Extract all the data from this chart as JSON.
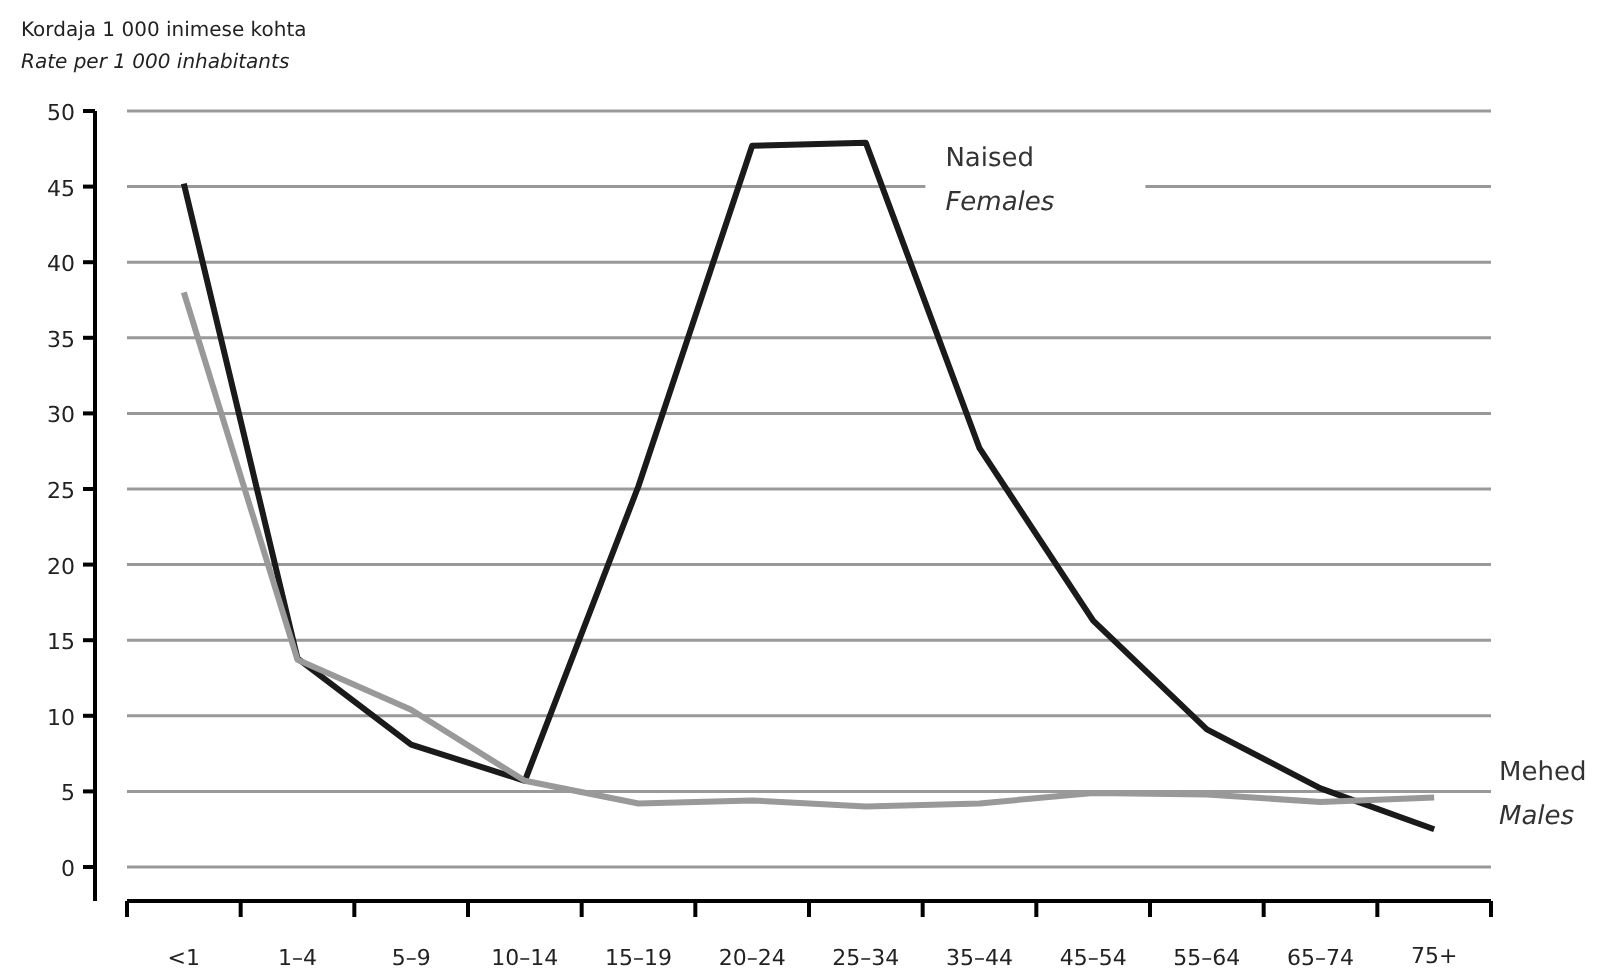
{
  "chart_data": {
    "type": "line",
    "ylabel": "Kordaja 1 000 inimese kohta\nRate per 1 000 inhabitants",
    "categories": [
      "<1",
      "1–4",
      "5–9",
      "10–14",
      "15–19",
      "20–24",
      "25–34",
      "35–44",
      "45–54",
      "55–64",
      "65–74",
      "75+"
    ],
    "series": [
      {
        "name": "Naised\nFemales",
        "color": "#1a1a1a",
        "values": [
          45.2,
          13.8,
          8.1,
          5.7,
          25.2,
          47.7,
          47.9,
          27.7,
          16.3,
          9.1,
          5.2,
          2.5
        ]
      },
      {
        "name": "Mehed\nMales",
        "color": "#999999",
        "values": [
          38.0,
          13.7,
          10.4,
          5.7,
          4.2,
          4.4,
          4.0,
          4.2,
          4.9,
          4.8,
          4.3,
          4.6
        ]
      }
    ],
    "ylim": [
      0,
      50
    ],
    "yticks": [
      0,
      5,
      10,
      15,
      20,
      25,
      30,
      35,
      40,
      45,
      50
    ],
    "grid": "y",
    "line_style": "solid",
    "marker": "none"
  }
}
